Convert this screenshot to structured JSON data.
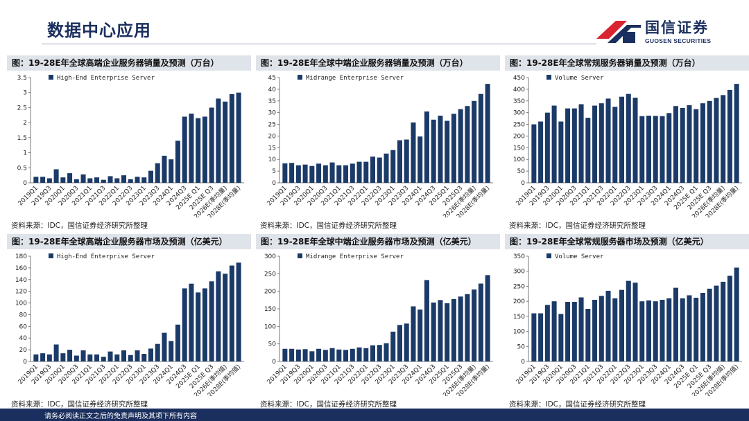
{
  "header": {
    "title": "数据中心应用"
  },
  "logo": {
    "cn": "国信证券",
    "en": "GUOSEN SECURITIES"
  },
  "footer": {
    "text": "请务必阅读正文之后的免责声明及其项下所有内容"
  },
  "colors": {
    "bar": "#1b3a68",
    "brand_navy": "#1b2f5e",
    "brand_red": "#d9232e"
  },
  "tick_labels_a": [
    "2019Q1",
    "2019Q3",
    "2020Q1",
    "2020Q3",
    "2021Q1",
    "2021Q3",
    "2022Q1",
    "2022Q3",
    "2023Q1",
    "2023Q3",
    "2024Q1",
    "2024Q3",
    "2025E Q1",
    "2025E Q3",
    "2026E(季均量)",
    "2028E(季均量)"
  ],
  "tick_labels_b": [
    "2019Q1",
    "2019Q3",
    "2020Q1",
    "2020Q3",
    "2021Q1",
    "2021Q3",
    "2022Q1",
    "2022Q3",
    "2023Q1",
    "2023Q3",
    "2024Q1",
    "2024Q3",
    "2025Q1",
    "2025Q3",
    "2026E(季均量)",
    "2028E(季均量)"
  ],
  "tick_labels_c": [
    "2019Q1",
    "2019Q3",
    "2020Q1",
    "2020Q3",
    "2021Q1",
    "2021Q3",
    "2022Q1",
    "2022Q3",
    "2023Q1",
    "2023Q3",
    "2024Q1",
    "2024Q3",
    "2025E Q1",
    "2025E Q3",
    "2026E(季均量)",
    "2028E(季均量)"
  ],
  "tick_labels_d": [
    "2019Q1",
    "2019Q3",
    "2020Q1",
    "2020Q3",
    "2021Q1",
    "2021Q3",
    "2022Q1",
    "2022Q3",
    "2023Q1",
    "2023Q3",
    "2024Q1",
    "2024Q3",
    "2025E Q1",
    "2025E Q3",
    "2026E(季均值)",
    "2028E(季均值)"
  ],
  "tick_labels_f": [
    "2019Q1",
    "2019Q3",
    "2020Q1",
    "2020Q3",
    "2021Q1",
    "2021Q3",
    "2022Q1",
    "2022Q3",
    "2023Q1",
    "2023Q3",
    "2024Q1",
    "2024Q3",
    "2025E Q1",
    "2025E Q3",
    "2026E(季均值)",
    "2028E(季均值)"
  ],
  "chart_data": [
    {
      "type": "bar",
      "title": "图：19-28E年全球高端企业服务器销量及预测（万台）",
      "source": "资料来源：IDC，国信证券经济研究所整理",
      "series": [
        {
          "name": "High-End Enterprise Server",
          "values": [
            0.2,
            0.2,
            0.15,
            0.45,
            0.18,
            0.32,
            0.12,
            0.28,
            0.15,
            0.18,
            0.1,
            0.22,
            0.15,
            0.25,
            0.12,
            0.2,
            0.18,
            0.4,
            0.65,
            0.9,
            0.78,
            1.4,
            2.2,
            2.3,
            2.15,
            2.2,
            2.5,
            2.8,
            2.7,
            2.95,
            3.0
          ]
        }
      ],
      "ylim": [
        0,
        3.5
      ],
      "yticks": [
        "0",
        "0.5",
        "1",
        "1.5",
        "2",
        "2.5",
        "3",
        "3.5"
      ],
      "tick_set": "tick_labels_a"
    },
    {
      "type": "bar",
      "title": "图：19-28E年全球中端企业服务器销量及预测（万台）",
      "source": "资料来源：IDC，国信证券经济研究所整理",
      "series": [
        {
          "name": "Midrange Enterprise Server",
          "values": [
            8.3,
            8.5,
            7.5,
            7.8,
            7.2,
            8.2,
            7.5,
            8.7,
            7.5,
            7.5,
            8.2,
            9.0,
            9.0,
            11.2,
            10.8,
            12.5,
            14.0,
            18.2,
            18.5,
            25.8,
            19.8,
            30.5,
            27.0,
            28.7,
            26.5,
            29.5,
            31.5,
            32.8,
            35.0,
            38.0,
            42.3
          ]
        }
      ],
      "ylim": [
        0,
        45
      ],
      "yticks": [
        "0",
        "5",
        "10",
        "15",
        "20",
        "25",
        "30",
        "35",
        "40",
        "45"
      ],
      "tick_set": "tick_labels_b"
    },
    {
      "type": "bar",
      "title": "图：19-28E年全球常规服务器销量及预测（万台）",
      "source": "资料来源：IDC，国信证券经济研究所整理",
      "series": [
        {
          "name": "Volume Server",
          "values": [
            250,
            262,
            300,
            330,
            262,
            318,
            318,
            336,
            278,
            330,
            340,
            360,
            325,
            368,
            380,
            364,
            285,
            287,
            286,
            285,
            298,
            328,
            320,
            332,
            315,
            340,
            350,
            363,
            375,
            397,
            423
          ]
        }
      ],
      "ylim": [
        0,
        450
      ],
      "yticks": [
        "0",
        "50",
        "100",
        "150",
        "200",
        "250",
        "300",
        "350",
        "400",
        "450"
      ],
      "tick_set": "tick_labels_c"
    },
    {
      "type": "bar",
      "title": "图：19-28E年全球高端企业服务器市场及预测（亿美元）",
      "source": "资料来源：IDC，国信证券经济研究所整理",
      "series": [
        {
          "name": "High-End Enterprise Server",
          "values": [
            12,
            14,
            12,
            29,
            14,
            20,
            10,
            19,
            12,
            12,
            8,
            17,
            12,
            19,
            11,
            19,
            13,
            22,
            30,
            49,
            35,
            63,
            125,
            133,
            118,
            125,
            137,
            154,
            150,
            164,
            169
          ]
        }
      ],
      "ylim": [
        0,
        180
      ],
      "yticks": [
        "0",
        "20",
        "40",
        "60",
        "80",
        "100",
        "120",
        "140",
        "160",
        "180"
      ],
      "tick_set": "tick_labels_d"
    },
    {
      "type": "bar",
      "title": "图：19-28E年全球中端企业服务器市场及预测（亿美元）",
      "source": "资料来源：IDC，国信证券经济研究所整理",
      "series": [
        {
          "name": "Midrange Enterprise Server",
          "values": [
            36,
            36,
            34,
            35,
            29,
            36,
            33,
            38,
            34,
            33,
            36,
            40,
            38,
            46,
            47,
            52,
            85,
            104,
            108,
            157,
            148,
            232,
            168,
            175,
            166,
            178,
            185,
            192,
            205,
            222,
            246
          ]
        }
      ],
      "ylim": [
        0,
        300
      ],
      "yticks": [
        "0",
        "50",
        "100",
        "150",
        "200",
        "250",
        "300"
      ],
      "tick_set": "tick_labels_b"
    },
    {
      "type": "bar",
      "title": "图：19-28E年全球常规服务器市场及预测（亿美元）",
      "source": "资料来源：IDC，国信证券经济研究所整理",
      "series": [
        {
          "name": "Volume Server",
          "values": [
            160,
            160,
            188,
            200,
            158,
            198,
            198,
            213,
            175,
            205,
            218,
            235,
            210,
            238,
            268,
            262,
            200,
            203,
            200,
            205,
            210,
            245,
            210,
            220,
            212,
            228,
            242,
            252,
            265,
            285,
            312
          ]
        }
      ],
      "ylim": [
        0,
        350
      ],
      "yticks": [
        "0",
        "50",
        "100",
        "150",
        "200",
        "250",
        "300",
        "350"
      ],
      "tick_set": "tick_labels_f"
    }
  ]
}
